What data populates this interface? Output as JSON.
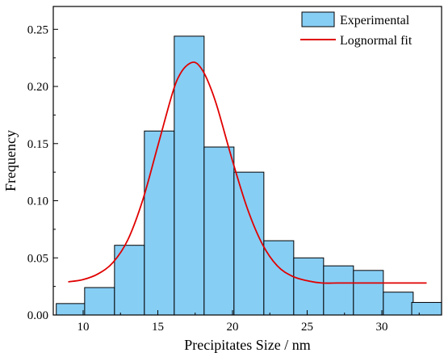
{
  "chart_data": {
    "type": "bar",
    "xlabel": "Precipitates Size / nm",
    "ylabel": "Frequency",
    "xlim": [
      8.0,
      34.0
    ],
    "ylim": [
      0.0,
      0.27
    ],
    "x_ticks": [
      10,
      15,
      20,
      25,
      30
    ],
    "x_tick_labels": [
      "10",
      "15",
      "20",
      "25",
      "30"
    ],
    "y_ticks": [
      0.0,
      0.05,
      0.1,
      0.15,
      0.2,
      0.25
    ],
    "y_tick_labels": [
      "0.00",
      "0.05",
      "0.10",
      "0.15",
      "0.20",
      "0.25"
    ],
    "bar_width": 2.0,
    "bar_color": "#87CEF5",
    "bar_edge_color": "#000000",
    "fit_color": "#E00000",
    "legend_position": "top-right",
    "legend": [
      "Experimental",
      "Lognormal fit"
    ],
    "series": [
      {
        "name": "Experimental",
        "type": "bar",
        "x": [
          9.2,
          11.1,
          13.1,
          15.1,
          17.1,
          19.1,
          21.1,
          23.1,
          25.1,
          27.1,
          29.1,
          31.1,
          33.0
        ],
        "values": [
          0.01,
          0.024,
          0.061,
          0.161,
          0.244,
          0.147,
          0.125,
          0.065,
          0.05,
          0.043,
          0.039,
          0.02,
          0.011
        ]
      },
      {
        "name": "Lognormal fit",
        "type": "line",
        "x": [
          9.0,
          10.0,
          11.0,
          12.0,
          13.0,
          14.0,
          15.0,
          16.0,
          16.5,
          17.0,
          17.5,
          18.0,
          18.5,
          19.0,
          20.0,
          21.0,
          22.0,
          23.0,
          24.0,
          25.0,
          26.0,
          27.0,
          28.0,
          29.0,
          30.0,
          31.0,
          32.0,
          33.0
        ],
        "values": [
          0.029,
          0.031,
          0.036,
          0.046,
          0.066,
          0.101,
          0.148,
          0.195,
          0.211,
          0.219,
          0.221,
          0.214,
          0.2,
          0.181,
          0.135,
          0.093,
          0.062,
          0.043,
          0.034,
          0.03,
          0.028,
          0.028,
          0.028,
          0.028,
          0.028,
          0.028,
          0.028,
          0.028
        ]
      }
    ]
  }
}
